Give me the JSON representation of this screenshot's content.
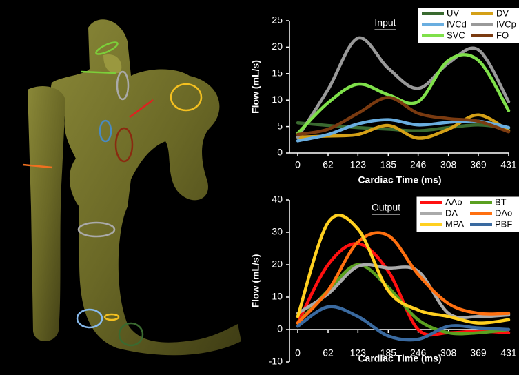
{
  "chart_data": [
    {
      "type": "line",
      "title": "Input",
      "x_label": "Cardiac Time (ms)",
      "y_label": "Flow (mL/s)",
      "x": [
        0,
        62,
        123,
        185,
        246,
        308,
        369,
        431
      ],
      "xlim": [
        0,
        431
      ],
      "xticks": [
        0,
        62,
        123,
        185,
        246,
        308,
        369,
        431
      ],
      "ylim": [
        0,
        25
      ],
      "yticks": [
        0,
        5,
        10,
        15,
        20,
        25
      ],
      "series": [
        {
          "name": "UV",
          "color": "#3a6a30",
          "values": [
            5.7,
            5.2,
            4.8,
            4.5,
            4.2,
            4.8,
            5.3,
            4.7
          ]
        },
        {
          "name": "DV",
          "color": "#d4a017",
          "values": [
            3,
            3.2,
            3.5,
            5.2,
            2.8,
            4.5,
            7.2,
            4.2
          ]
        },
        {
          "name": "IVCd",
          "color": "#6aaee0",
          "values": [
            2.3,
            3.5,
            5.5,
            6.3,
            5.3,
            5.8,
            6,
            4.8
          ]
        },
        {
          "name": "IVCp",
          "color": "#999999",
          "values": [
            3,
            12,
            21.7,
            16,
            12.2,
            17,
            19.5,
            9.7
          ]
        },
        {
          "name": "SVC",
          "color": "#7fe04a",
          "values": [
            3.7,
            9.5,
            13,
            11,
            9.7,
            17.5,
            17.5,
            8
          ]
        },
        {
          "name": "FO",
          "color": "#7a3a10",
          "values": [
            3.5,
            4.5,
            7.5,
            10.5,
            7.5,
            6.5,
            6,
            4
          ]
        }
      ]
    },
    {
      "type": "line",
      "title": "Output",
      "x_label": "Cardiac Time (ms)",
      "y_label": "Flow (mL/s)",
      "x": [
        0,
        62,
        123,
        185,
        246,
        308,
        369,
        431
      ],
      "xlim": [
        0,
        431
      ],
      "xticks": [
        0,
        62,
        123,
        185,
        246,
        308,
        369,
        431
      ],
      "ylim": [
        -10,
        40
      ],
      "yticks": [
        -10,
        0,
        10,
        20,
        30,
        40
      ],
      "series": [
        {
          "name": "AAo",
          "color": "#ff1010",
          "values": [
            2,
            20,
            26.5,
            18,
            0,
            -1,
            -0.5,
            -1
          ]
        },
        {
          "name": "BT",
          "color": "#5aa020",
          "values": [
            2,
            12,
            20,
            13,
            3,
            -1,
            -1,
            0
          ]
        },
        {
          "name": "DA",
          "color": "#aaaaaa",
          "values": [
            5,
            11,
            19.5,
            19,
            18,
            5,
            4,
            4.5
          ]
        },
        {
          "name": "DAo",
          "color": "#ff7010",
          "values": [
            2,
            12,
            27,
            29,
            17,
            8,
            5,
            5
          ]
        },
        {
          "name": "MPA",
          "color": "#ffd020",
          "values": [
            4,
            33,
            31,
            12,
            6,
            4,
            2,
            3
          ]
        },
        {
          "name": "PBF",
          "color": "#3a6aa0",
          "values": [
            1,
            7,
            4,
            -2,
            -3,
            1,
            0.5,
            0
          ]
        }
      ]
    }
  ]
}
